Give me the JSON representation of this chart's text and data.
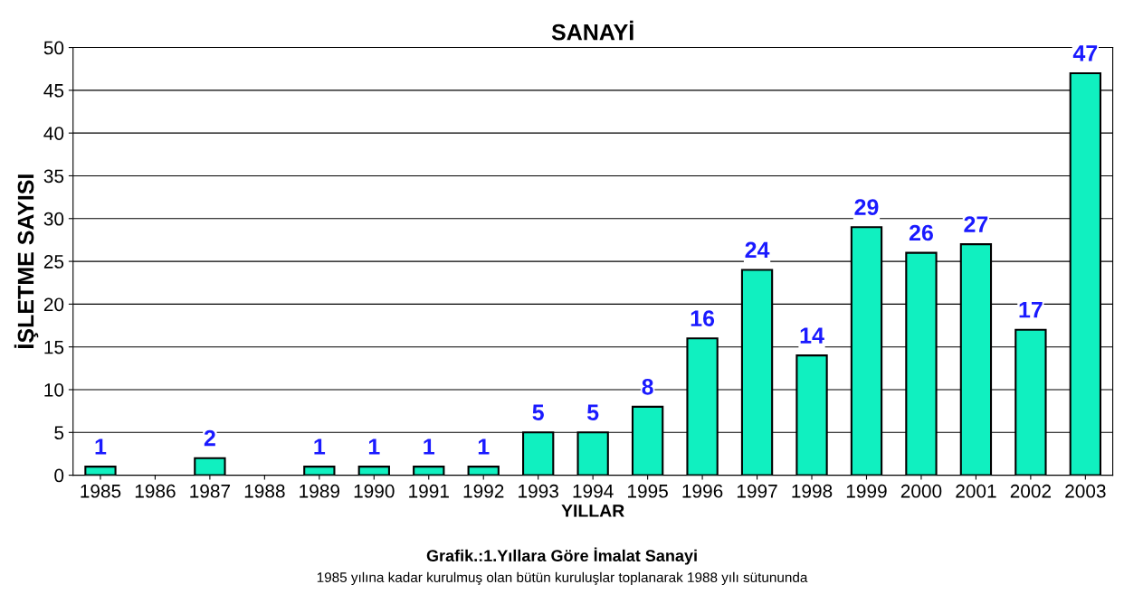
{
  "chart_data": {
    "type": "bar",
    "title": "SANAYİ",
    "xlabel": "YILLAR",
    "ylabel": "İŞLETME SAYISI",
    "annotations": [
      "Grafik.:1.Yıllara Göre İmalat Sanayi",
      "1985 yılına kadar kurulmuş olan bütün kuruluşlar toplanarak 1988 yılı sütununda"
    ],
    "categories": [
      "1985",
      "1986",
      "1987",
      "1988",
      "1989",
      "1990",
      "1991",
      "1992",
      "1993",
      "1994",
      "1995",
      "1996",
      "1997",
      "1998",
      "1999",
      "2000",
      "2001",
      "2002",
      "2003"
    ],
    "values": [
      1,
      null,
      2,
      null,
      1,
      1,
      1,
      1,
      5,
      5,
      8,
      16,
      24,
      14,
      29,
      26,
      27,
      17,
      47
    ],
    "value_labels": [
      "1",
      null,
      "2",
      null,
      "1",
      "1",
      "1",
      "1",
      "5",
      "5",
      "8",
      "16",
      "24",
      "14",
      "29",
      "26",
      "27",
      "17",
      "47"
    ],
    "color": "#10f0c0",
    "ylim": [
      0,
      50
    ],
    "yticks": [
      0,
      5,
      10,
      15,
      20,
      25,
      30,
      35,
      40,
      45,
      50
    ],
    "grid": "y",
    "legend": false
  }
}
